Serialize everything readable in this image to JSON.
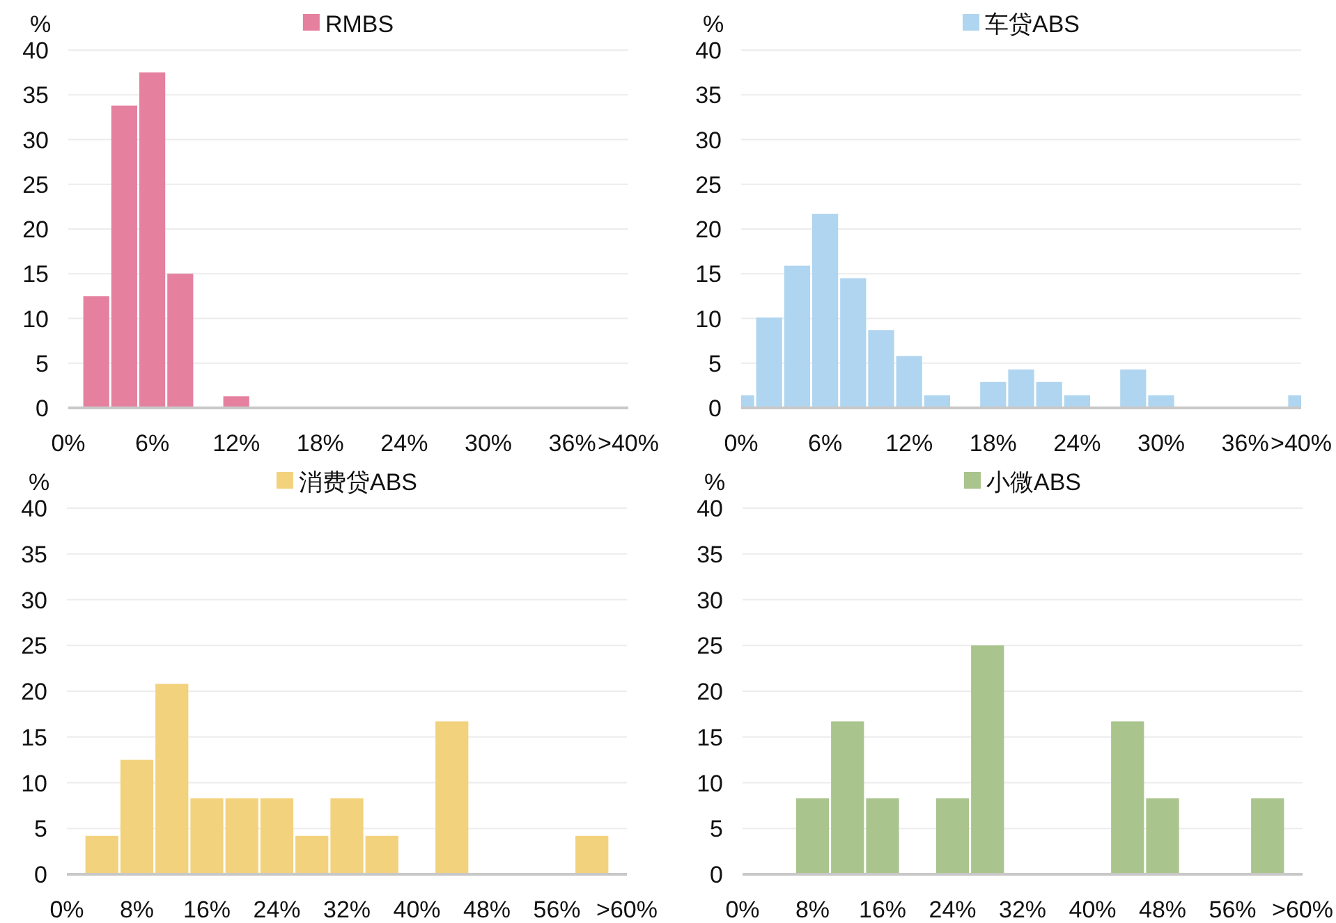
{
  "chart_data": [
    {
      "type": "bar",
      "ylabel": "%",
      "grid": "y",
      "legend": "top",
      "xlim": [
        0,
        40
      ],
      "ylim": [
        0,
        40
      ],
      "yticks": [
        0,
        5,
        10,
        15,
        20,
        25,
        30,
        35,
        40
      ],
      "xticks": [
        {
          "value": 0,
          "label": "0%"
        },
        {
          "value": 6,
          "label": "6%"
        },
        {
          "value": 12,
          "label": "12%"
        },
        {
          "value": 18,
          "label": "18%"
        },
        {
          "value": 24,
          "label": "24%"
        },
        {
          "value": 30,
          "label": "30%"
        },
        {
          "value": 36,
          "label": "36%"
        },
        {
          "value": 40,
          "label": ">40%"
        }
      ],
      "series": [
        {
          "name": "RMBS",
          "color": "#e5809f",
          "x": [
            0,
            2,
            4,
            6,
            8,
            10,
            12,
            14,
            16,
            18,
            20,
            22,
            24,
            26,
            28,
            30,
            32,
            34,
            36,
            38,
            40
          ],
          "values": [
            0,
            12.5,
            33.8,
            37.5,
            15,
            0,
            1.3,
            0,
            0,
            0,
            0,
            0,
            0,
            0,
            0,
            0,
            0,
            0,
            0,
            0,
            0
          ]
        }
      ]
    },
    {
      "type": "bar",
      "ylabel": "%",
      "grid": "y",
      "legend": "top",
      "xlim": [
        0,
        40
      ],
      "ylim": [
        0,
        40
      ],
      "yticks": [
        0,
        5,
        10,
        15,
        20,
        25,
        30,
        35,
        40
      ],
      "xticks": [
        {
          "value": 0,
          "label": "0%"
        },
        {
          "value": 6,
          "label": "6%"
        },
        {
          "value": 12,
          "label": "12%"
        },
        {
          "value": 18,
          "label": "18%"
        },
        {
          "value": 24,
          "label": "24%"
        },
        {
          "value": 30,
          "label": "30%"
        },
        {
          "value": 36,
          "label": "36%"
        },
        {
          "value": 40,
          "label": ">40%"
        }
      ],
      "series": [
        {
          "name": "车贷ABS",
          "color": "#afd5f0",
          "x": [
            0,
            2,
            4,
            6,
            8,
            10,
            12,
            14,
            16,
            18,
            20,
            22,
            24,
            26,
            28,
            30,
            32,
            34,
            36,
            38,
            40
          ],
          "values": [
            1.4,
            10.1,
            15.9,
            21.7,
            14.5,
            8.7,
            5.8,
            1.4,
            0,
            2.9,
            4.3,
            2.9,
            1.4,
            0,
            4.3,
            1.4,
            0,
            0,
            0,
            0,
            1.4
          ]
        }
      ]
    },
    {
      "type": "bar",
      "ylabel": "%",
      "grid": "y",
      "legend": "top",
      "xlim": [
        0,
        64
      ],
      "ylim": [
        0,
        40
      ],
      "yticks": [
        0,
        5,
        10,
        15,
        20,
        25,
        30,
        35,
        40
      ],
      "xticks": [
        {
          "value": 0,
          "label": "0%"
        },
        {
          "value": 8,
          "label": "8%"
        },
        {
          "value": 16,
          "label": "16%"
        },
        {
          "value": 24,
          "label": "24%"
        },
        {
          "value": 32,
          "label": "32%"
        },
        {
          "value": 40,
          "label": "40%"
        },
        {
          "value": 48,
          "label": "48%"
        },
        {
          "value": 56,
          "label": "56%"
        },
        {
          "value": 64,
          "label": ">60%"
        }
      ],
      "series": [
        {
          "name": "消费贷ABS",
          "color": "#f3d27e",
          "x": [
            4,
            8,
            12,
            16,
            20,
            24,
            28,
            32,
            36,
            40,
            44,
            48,
            52,
            56,
            60
          ],
          "values": [
            4.2,
            12.5,
            20.8,
            8.3,
            8.3,
            8.3,
            4.2,
            8.3,
            4.2,
            0,
            16.7,
            0,
            0,
            0,
            4.2
          ]
        }
      ]
    },
    {
      "type": "bar",
      "ylabel": "%",
      "grid": "y",
      "legend": "top",
      "xlim": [
        0,
        64
      ],
      "ylim": [
        0,
        40
      ],
      "yticks": [
        0,
        5,
        10,
        15,
        20,
        25,
        30,
        35,
        40
      ],
      "xticks": [
        {
          "value": 0,
          "label": "0%"
        },
        {
          "value": 8,
          "label": "8%"
        },
        {
          "value": 16,
          "label": "16%"
        },
        {
          "value": 24,
          "label": "24%"
        },
        {
          "value": 32,
          "label": "32%"
        },
        {
          "value": 40,
          "label": "40%"
        },
        {
          "value": 48,
          "label": "48%"
        },
        {
          "value": 56,
          "label": "56%"
        },
        {
          "value": 64,
          "label": ">60%"
        }
      ],
      "series": [
        {
          "name": "小微ABS",
          "color": "#a9c48c",
          "x": [
            4,
            8,
            12,
            16,
            20,
            24,
            28,
            32,
            36,
            40,
            44,
            48,
            52,
            56,
            60
          ],
          "values": [
            0,
            8.3,
            16.7,
            8.3,
            0,
            8.3,
            25,
            0,
            0,
            0,
            16.7,
            8.3,
            0,
            0,
            8.3
          ]
        }
      ]
    }
  ]
}
